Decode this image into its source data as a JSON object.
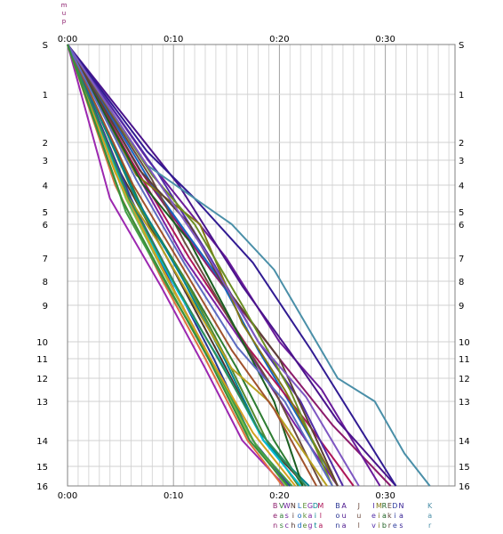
{
  "chart_data": {
    "type": "line",
    "title_chars": [
      "m",
      "u",
      "p"
    ],
    "x_ticks": [
      "0:00",
      "0:10",
      "0:20",
      "0:30"
    ],
    "x_tick_values": [
      0,
      10,
      20,
      30
    ],
    "xlim": [
      0,
      36
    ],
    "y_stops": [
      "S",
      "1",
      "2",
      "3",
      "4",
      "5",
      "6",
      "7",
      "8",
      "9",
      "10",
      "11",
      "12",
      "13",
      "14",
      "15",
      "16"
    ],
    "y_stop_values": [
      0,
      1,
      2,
      3,
      4,
      5,
      6,
      7,
      8,
      9,
      10,
      11,
      12,
      13,
      14,
      15,
      16
    ],
    "ylim": [
      0,
      16
    ],
    "grid": true,
    "legend_placement": "bottom",
    "legend": [
      {
        "lines": [
          "B",
          "e",
          "n"
        ],
        "color": "#8b1a6b",
        "x": 19.6
      },
      {
        "lines": [
          "V",
          "a",
          "s"
        ],
        "color": "#2e7d32",
        "x": 20.2
      },
      {
        "lines": [
          "W",
          "s",
          "c"
        ],
        "color": "#6a1b9a",
        "x": 20.7
      },
      {
        "lines": [
          "N",
          "i",
          "h"
        ],
        "color": "#4e342e",
        "x": 21.3
      },
      {
        "lines": [
          "L",
          "o",
          "d"
        ],
        "color": "#1565c0",
        "x": 21.9
      },
      {
        "lines": [
          "E",
          "k",
          "e"
        ],
        "color": "#558b2f",
        "x": 22.4
      },
      {
        "lines": [
          "G",
          "a",
          "g"
        ],
        "color": "#7b1fa2",
        "x": 22.9
      },
      {
        "lines": [
          "D",
          "i",
          "t"
        ],
        "color": "#00838f",
        "x": 23.4
      },
      {
        "lines": [
          "M",
          "l",
          "a"
        ],
        "color": "#ad1457",
        "x": 23.9
      },
      {
        "lines": [
          "B",
          "o",
          "n"
        ],
        "color": "#283593",
        "x": 25.5
      },
      {
        "lines": [
          "A",
          "u",
          "a"
        ],
        "color": "#4a148c",
        "x": 26.1
      },
      {
        "lines": [
          "J",
          "u",
          "l"
        ],
        "color": "#6d4c41",
        "x": 27.5
      },
      {
        "lines": [
          "I",
          "e",
          "v"
        ],
        "color": "#512da8",
        "x": 28.9
      },
      {
        "lines": [
          "M",
          "i",
          "i"
        ],
        "color": "#827717",
        "x": 29.4
      },
      {
        "lines": [
          "R",
          "a",
          "b"
        ],
        "color": "#1b5e20",
        "x": 29.9
      },
      {
        "lines": [
          "E",
          "k",
          "r"
        ],
        "color": "#5d4037",
        "x": 30.4
      },
      {
        "lines": [
          "D",
          "i",
          "e"
        ],
        "color": "#303f9f",
        "x": 30.9
      },
      {
        "lines": [
          "N",
          "a",
          "s"
        ],
        "color": "#311b92",
        "x": 31.5
      },
      {
        "lines": [
          "K",
          "a",
          "r"
        ],
        "color": "#4a8fa8",
        "x": 34.2
      }
    ],
    "series": [
      {
        "color": "#8b1a6b",
        "x": [
          0,
          7.0,
          13.5,
          20.0,
          25.0,
          30.5
        ],
        "y": [
          0,
          3.5,
          7.5,
          11.0,
          13.6,
          16
        ]
      },
      {
        "color": "#2e7d32",
        "x": [
          0,
          7.2,
          11.5,
          16.0,
          19.5,
          22.2
        ],
        "y": [
          0,
          5.0,
          8.2,
          11.5,
          14.0,
          16
        ]
      },
      {
        "color": "#6a1b9a",
        "x": [
          0,
          7.6,
          15.0,
          20.0,
          24.0,
          29.5
        ],
        "y": [
          0,
          3.0,
          7.0,
          10.0,
          12.5,
          16
        ]
      },
      {
        "color": "#4e342e",
        "x": [
          0,
          5.0,
          10.0,
          14.5,
          18.5,
          22.5
        ],
        "y": [
          0,
          3.5,
          7.5,
          11.0,
          14.0,
          16
        ]
      },
      {
        "color": "#1565c0",
        "x": [
          0,
          8.0,
          14.5,
          18.0,
          22.0,
          25.5
        ],
        "y": [
          0,
          4.0,
          8.0,
          10.5,
          13.5,
          16
        ]
      },
      {
        "color": "#558b2f",
        "x": [
          0,
          7.0,
          11.2,
          15.0,
          18.8,
          21.8
        ],
        "y": [
          0,
          5.0,
          8.0,
          11.0,
          14.0,
          16
        ]
      },
      {
        "color": "#7b1fa2",
        "x": [
          0,
          6.5,
          11.0,
          17.0,
          21.5,
          25.5
        ],
        "y": [
          0,
          3.5,
          7.0,
          10.5,
          13.6,
          16
        ]
      },
      {
        "color": "#00838f",
        "x": [
          0,
          6.5,
          11.0,
          14.8,
          18.5,
          22.8
        ],
        "y": [
          0,
          4.5,
          8.0,
          11.0,
          14.0,
          16
        ]
      },
      {
        "color": "#ad1457",
        "x": [
          0,
          6.0,
          11.5,
          17.0,
          22.5,
          27.0
        ],
        "y": [
          0,
          3.0,
          7.0,
          10.3,
          13.5,
          16
        ]
      },
      {
        "color": "#283593",
        "x": [
          0,
          5.5,
          10.0,
          13.8,
          17.5,
          21.0
        ],
        "y": [
          0,
          4.2,
          8.0,
          11.0,
          14.0,
          16
        ]
      },
      {
        "color": "#4a148c",
        "x": [
          0,
          10.5,
          16.5,
          21.0,
          25.5,
          31.0
        ],
        "y": [
          0,
          4.0,
          8.2,
          10.6,
          13.5,
          16
        ]
      },
      {
        "color": "#6d4c41",
        "x": [
          0,
          8.0,
          11.0,
          15.5,
          19.5,
          24.0
        ],
        "y": [
          0,
          3.8,
          6.5,
          9.5,
          12.5,
          16
        ]
      },
      {
        "color": "#512da8",
        "x": [
          0,
          8.5,
          13.5,
          18.0,
          22.0,
          26.0
        ],
        "y": [
          0,
          3.5,
          7.0,
          10.0,
          13.0,
          16
        ]
      },
      {
        "color": "#827717",
        "x": [
          0,
          6.5,
          12.5,
          16.5,
          20.5,
          25.5
        ],
        "y": [
          0,
          3.6,
          6.0,
          9.5,
          12.5,
          16
        ]
      },
      {
        "color": "#1b5e20",
        "x": [
          0,
          7.0,
          11.5,
          15.8,
          19.5,
          22.2
        ],
        "y": [
          0,
          3.9,
          6.5,
          9.6,
          13.0,
          16
        ]
      },
      {
        "color": "#5d4037",
        "x": [
          0,
          6.8,
          11.5,
          14.5,
          20.0,
          25.5
        ],
        "y": [
          0,
          3.4,
          6.0,
          8.0,
          11.0,
          16
        ]
      },
      {
        "color": "#303f9f",
        "x": [
          0,
          6.0,
          10.2,
          13.5,
          17.5,
          21.0
        ],
        "y": [
          0,
          4.5,
          8.5,
          11.0,
          14.0,
          16
        ]
      },
      {
        "color": "#311b92",
        "x": [
          0,
          7.5,
          12.0,
          17.5,
          23.0,
          31.0
        ],
        "y": [
          0,
          2.5,
          4.5,
          7.2,
          10.5,
          16
        ]
      },
      {
        "color": "#4a8fa8",
        "x": [
          0,
          7.5,
          15.5,
          19.5,
          25.5,
          29.0,
          31.8,
          34.2
        ],
        "y": [
          0,
          3.2,
          6.0,
          7.5,
          12.0,
          13.0,
          14.5,
          16
        ]
      },
      {
        "color": "#b8a020",
        "x": [
          0,
          5.0,
          8.5,
          12.0,
          15.5,
          19.0,
          24.5
        ],
        "y": [
          0,
          4.0,
          6.5,
          9.0,
          11.5,
          13.0,
          16
        ]
      },
      {
        "color": "#9c27b0",
        "x": [
          0,
          4.0,
          8.8,
          13.0,
          16.5,
          20.5
        ],
        "y": [
          0,
          4.5,
          8.2,
          11.5,
          14.0,
          16
        ]
      },
      {
        "color": "#e07040",
        "x": [
          0,
          4.5,
          9.0,
          13.0,
          17.0,
          20.3
        ],
        "y": [
          0,
          4.0,
          8.0,
          11.0,
          14.0,
          16
        ]
      },
      {
        "color": "#8bc34a",
        "x": [
          0,
          5.5,
          9.5,
          13.5,
          17.0,
          20.6
        ],
        "y": [
          0,
          4.5,
          8.0,
          11.0,
          13.8,
          16
        ]
      },
      {
        "color": "#00bcd4",
        "x": [
          0,
          6.0,
          10.5,
          14.5,
          18.5,
          22.0
        ],
        "y": [
          0,
          4.8,
          8.5,
          11.2,
          14.0,
          16
        ]
      },
      {
        "color": "#43a047",
        "x": [
          0,
          5.5,
          9.8,
          14.0,
          17.8,
          21.2
        ],
        "y": [
          0,
          5.0,
          8.5,
          11.5,
          14.2,
          16
        ]
      },
      {
        "color": "#d4a020",
        "x": [
          0,
          4.5,
          9.0,
          13.5,
          17.5,
          21.5
        ],
        "y": [
          0,
          3.5,
          7.5,
          11.0,
          13.8,
          16
        ]
      },
      {
        "color": "#6b8e23",
        "x": [
          0,
          8.0,
          12.0,
          16.5,
          21.0,
          25.0
        ],
        "y": [
          0,
          3.6,
          6.0,
          9.0,
          12.5,
          16
        ]
      },
      {
        "color": "#7e57c2",
        "x": [
          0,
          7.5,
          13.0,
          18.0,
          22.5,
          27.5
        ],
        "y": [
          0,
          3.2,
          6.8,
          10.0,
          12.8,
          16
        ]
      },
      {
        "color": "#2e8b57",
        "x": [
          0,
          5.8,
          10.0,
          14.2,
          18.2,
          22.5
        ],
        "y": [
          0,
          4.5,
          8.0,
          11.0,
          13.8,
          16
        ]
      },
      {
        "color": "#a0522d",
        "x": [
          0,
          6.2,
          11.0,
          15.5,
          19.5,
          23.5
        ],
        "y": [
          0,
          4.0,
          7.5,
          10.5,
          13.2,
          16
        ]
      },
      {
        "color": "#5c6bc0",
        "x": [
          0,
          6.5,
          11.0,
          16.0,
          20.5,
          25.0
        ],
        "y": [
          0,
          3.8,
          7.2,
          10.3,
          13.0,
          16
        ]
      },
      {
        "color": "#388e3c",
        "x": [
          0,
          5.2,
          9.5,
          13.5,
          17.2,
          20.8
        ],
        "y": [
          0,
          4.6,
          8.2,
          11.2,
          14.0,
          16
        ]
      }
    ]
  }
}
